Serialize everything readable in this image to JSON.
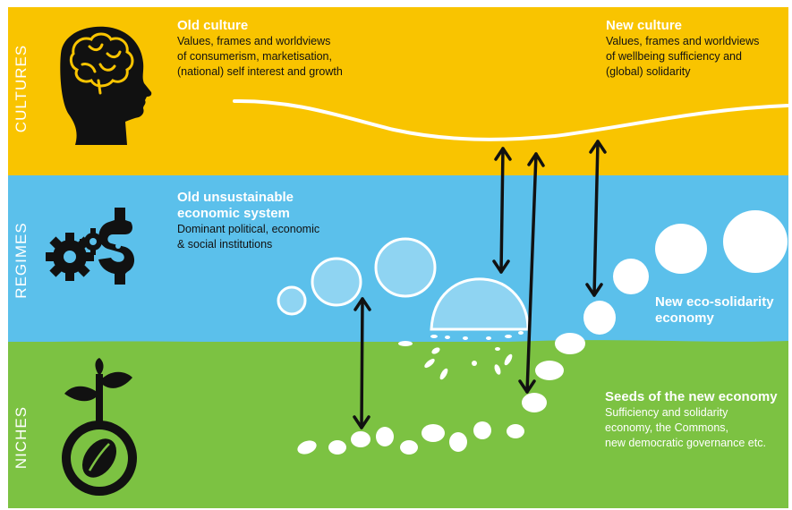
{
  "layers": {
    "cultures": "CULTURES",
    "regimes": "REGIMES",
    "niches": "NICHES"
  },
  "old_culture": {
    "title": "Old culture",
    "text": "Values, frames and worldviews\nof consumerism, marketisation,\n(national) self interest and growth"
  },
  "new_culture": {
    "title": "New culture",
    "text": "Values, frames and worldviews\nof wellbeing sufficiency and\n(global) solidarity"
  },
  "old_system": {
    "title": "Old unsustainable\neconomic system",
    "text": "Dominant political, economic\n& social institutions"
  },
  "new_economy": {
    "title": "New eco-solidarity\neconomy"
  },
  "seeds": {
    "title": "Seeds of the new economy",
    "text": "Sufficiency and solidarity\neconomy, the Commons,\nnew democratic governance etc."
  },
  "colors": {
    "cultures_band": "#f9c400",
    "regimes_band": "#5bc0eb",
    "niches_band": "#7cc242",
    "icons": "#111111",
    "text_light": "#ffffff"
  },
  "icons": [
    "head-brain-icon",
    "gears-dollar-icon",
    "seed-sprout-icon"
  ]
}
